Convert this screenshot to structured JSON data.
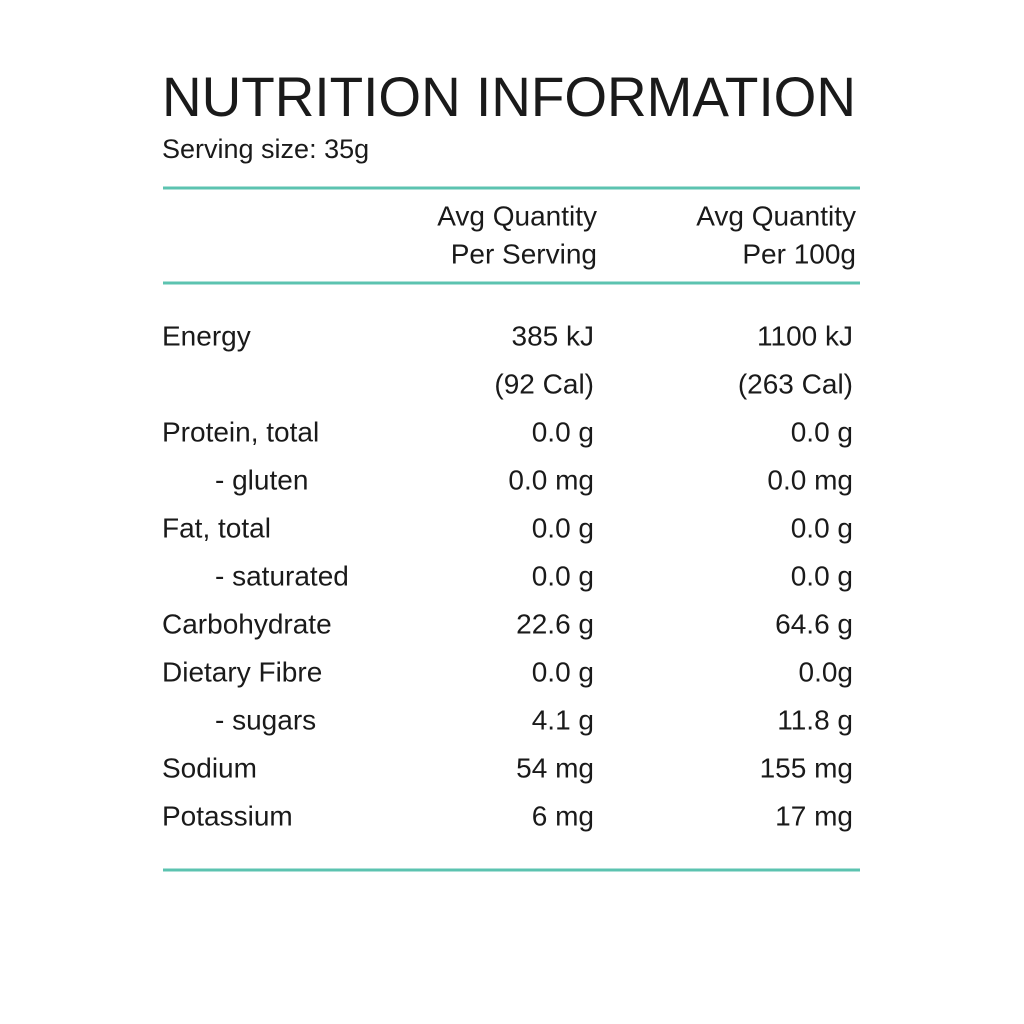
{
  "header": {
    "title": "NUTRITION INFORMATION",
    "serving_size": "Serving size: 35g"
  },
  "table": {
    "columns": [
      [
        "Avg Quantity",
        "Per Serving"
      ],
      [
        "Avg Quantity",
        "Per 100g"
      ]
    ],
    "rows": [
      {
        "label": "Energy",
        "per_serving": [
          "385 kJ",
          "(92 Cal)"
        ],
        "per_100g": [
          "1100 kJ",
          "(263 Cal)"
        ]
      },
      {
        "label": "Protein, total",
        "per_serving": "0.0 g",
        "per_100g": "0.0 g",
        "sub": [
          {
            "label": "- gluten",
            "per_serving": "0.0 mg",
            "per_100g": "0.0 mg"
          }
        ]
      },
      {
        "label": "Fat, total",
        "per_serving": "0.0 g",
        "per_100g": "0.0 g",
        "sub": [
          {
            "label": "- saturated",
            "per_serving": "0.0 g",
            "per_100g": "0.0 g"
          }
        ]
      },
      {
        "label": "Carbohydrate",
        "per_serving": "22.6 g",
        "per_100g": "64.6 g"
      },
      {
        "label": "Dietary Fibre",
        "per_serving": "0.0 g",
        "per_100g": "0.0g",
        "sub": [
          {
            "label": "- sugars",
            "per_serving": "4.1 g",
            "per_100g": "11.8 g"
          }
        ]
      },
      {
        "label": "Sodium",
        "per_serving": "54 mg",
        "per_100g": "155 mg"
      },
      {
        "label": "Potassium",
        "per_serving": "6 mg",
        "per_100g": "17 mg"
      }
    ]
  }
}
